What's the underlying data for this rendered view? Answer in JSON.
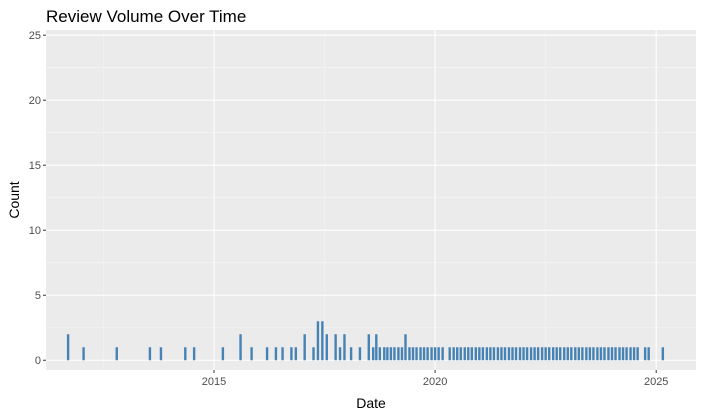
{
  "chart_data": {
    "type": "bar",
    "title": "Review Volume Over Time",
    "xlabel": "Date",
    "ylabel": "Count",
    "x_ticks": [
      "2015",
      "2020",
      "2025"
    ],
    "y_ticks": [
      "0",
      "5",
      "10",
      "15",
      "20",
      "25"
    ],
    "xlim": [
      2011.2,
      2025.9
    ],
    "ylim": [
      -0.75,
      25.4
    ],
    "grid": true,
    "colors": {
      "bar": "#4682b4",
      "panel": "#ebebeb",
      "grid_major": "#ffffff",
      "grid_minor": "#f5f5f5",
      "background": "#ffffff"
    },
    "series": [
      {
        "x": [
          2011.7,
          2012.05,
          2012.8,
          2013.55,
          2013.8,
          2014.35,
          2014.55,
          2015.2,
          2015.6,
          2015.85,
          2016.2,
          2016.4,
          2016.55,
          2016.75,
          2016.85,
          2017.05,
          2017.25,
          2017.35,
          2017.45,
          2017.55,
          2017.75,
          2017.85,
          2017.95,
          2018.1,
          2018.3,
          2018.5,
          2018.6,
          2018.67,
          2018.75,
          2018.85,
          2018.92,
          2019.0,
          2019.08,
          2019.17,
          2019.25,
          2019.33,
          2019.42,
          2019.5,
          2019.58,
          2019.67,
          2019.75,
          2019.83,
          2019.92,
          2020.0,
          2020.08,
          2020.17,
          2020.33,
          2020.42,
          2020.5,
          2020.58,
          2020.67,
          2020.75,
          2020.83,
          2020.92,
          2021.0,
          2021.08,
          2021.17,
          2021.25,
          2021.33,
          2021.42,
          2021.5,
          2021.58,
          2021.67,
          2021.75,
          2021.83,
          2021.92,
          2022.0,
          2022.08,
          2022.17,
          2022.25,
          2022.33,
          2022.42,
          2022.5,
          2022.58,
          2022.67,
          2022.75,
          2022.83,
          2022.92,
          2023.0,
          2023.08,
          2023.17,
          2023.25,
          2023.33,
          2023.42,
          2023.5,
          2023.58,
          2023.67,
          2023.75,
          2023.83,
          2023.92,
          2024.0,
          2024.08,
          2024.17,
          2024.25,
          2024.33,
          2024.42,
          2024.5,
          2024.58,
          2024.75,
          2024.83,
          2025.15
        ],
        "values": [
          2,
          1,
          1,
          1,
          1,
          1,
          1,
          1,
          2,
          1,
          1,
          1,
          1,
          1,
          1,
          2,
          1,
          3,
          3,
          2,
          2,
          1,
          2,
          1,
          1,
          2,
          1,
          2,
          1,
          1,
          1,
          1,
          1,
          1,
          1,
          2,
          1,
          1,
          1,
          1,
          1,
          1,
          1,
          1,
          1,
          1,
          1,
          1,
          1,
          1,
          1,
          1,
          1,
          1,
          1,
          1,
          1,
          1,
          1,
          1,
          1,
          1,
          1,
          1,
          1,
          1,
          1,
          1,
          1,
          1,
          1,
          1,
          1,
          1,
          1,
          1,
          1,
          1,
          1,
          1,
          1,
          1,
          1,
          1,
          1,
          1,
          1,
          1,
          1,
          1,
          1,
          1,
          1,
          1,
          1,
          1,
          1,
          1,
          1,
          1,
          1
        ]
      }
    ]
  }
}
